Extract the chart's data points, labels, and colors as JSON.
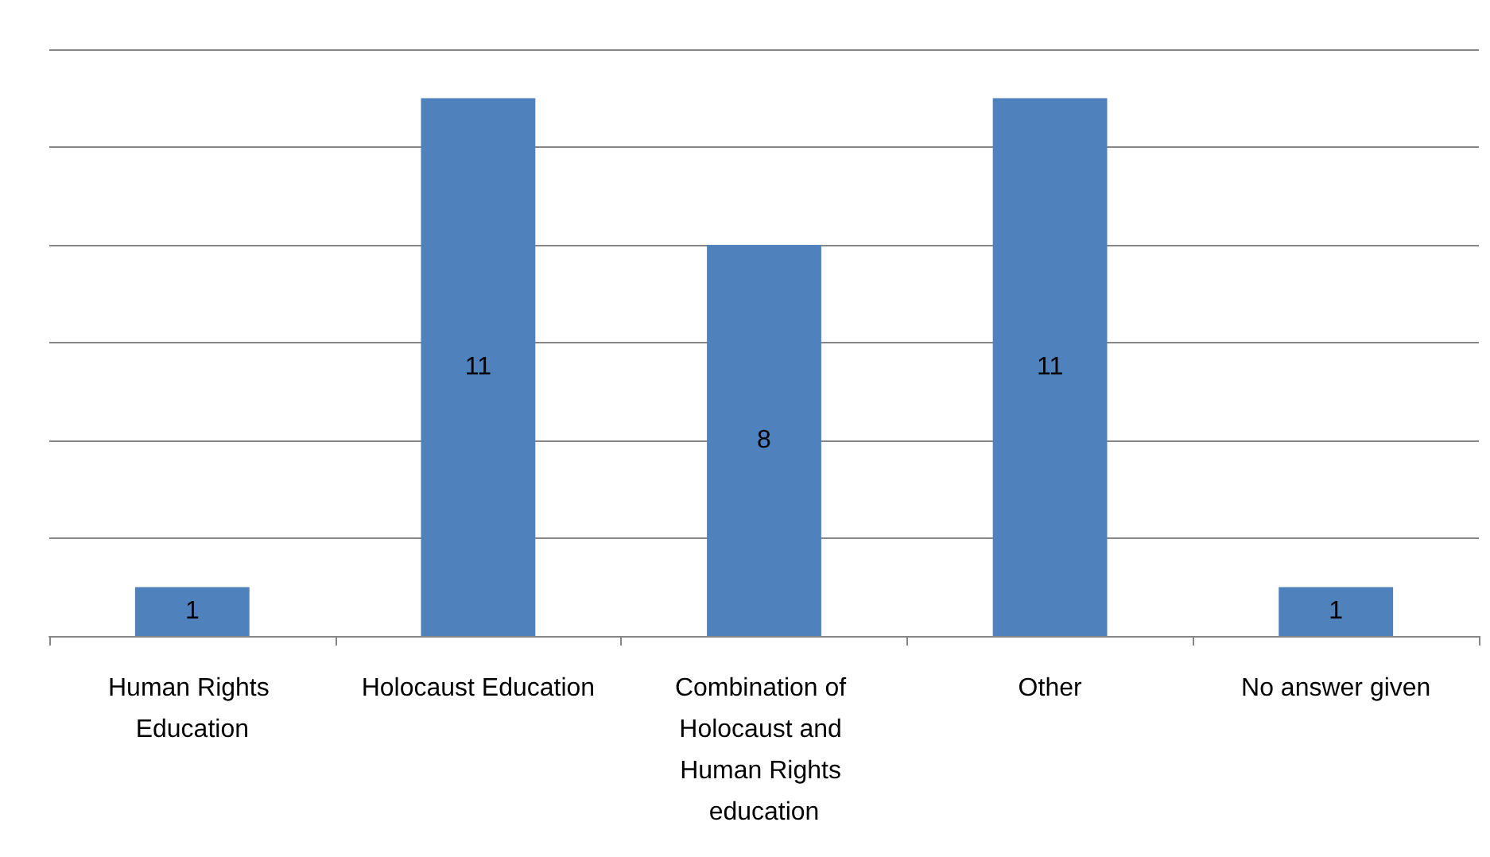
{
  "chart_data": {
    "type": "bar",
    "categories": [
      "Human Rights Education",
      "Holocaust Education",
      "Combination of Holocaust and Human Rights education",
      "Other",
      "No answer given"
    ],
    "values": [
      1,
      11,
      8,
      11,
      1
    ],
    "color": "#4f81bd",
    "data_labels": true,
    "ylim": [
      0,
      12
    ],
    "yticks": [
      {
        "value": 0,
        "label": null
      },
      {
        "value": 2,
        "label": null
      },
      {
        "value": 4,
        "label": null
      },
      {
        "value": 6,
        "label": null
      },
      {
        "value": 8,
        "label": null
      },
      {
        "value": 10,
        "label": null
      },
      {
        "value": 12,
        "label": null
      }
    ],
    "grid": "y",
    "tick_labels": "x"
  }
}
